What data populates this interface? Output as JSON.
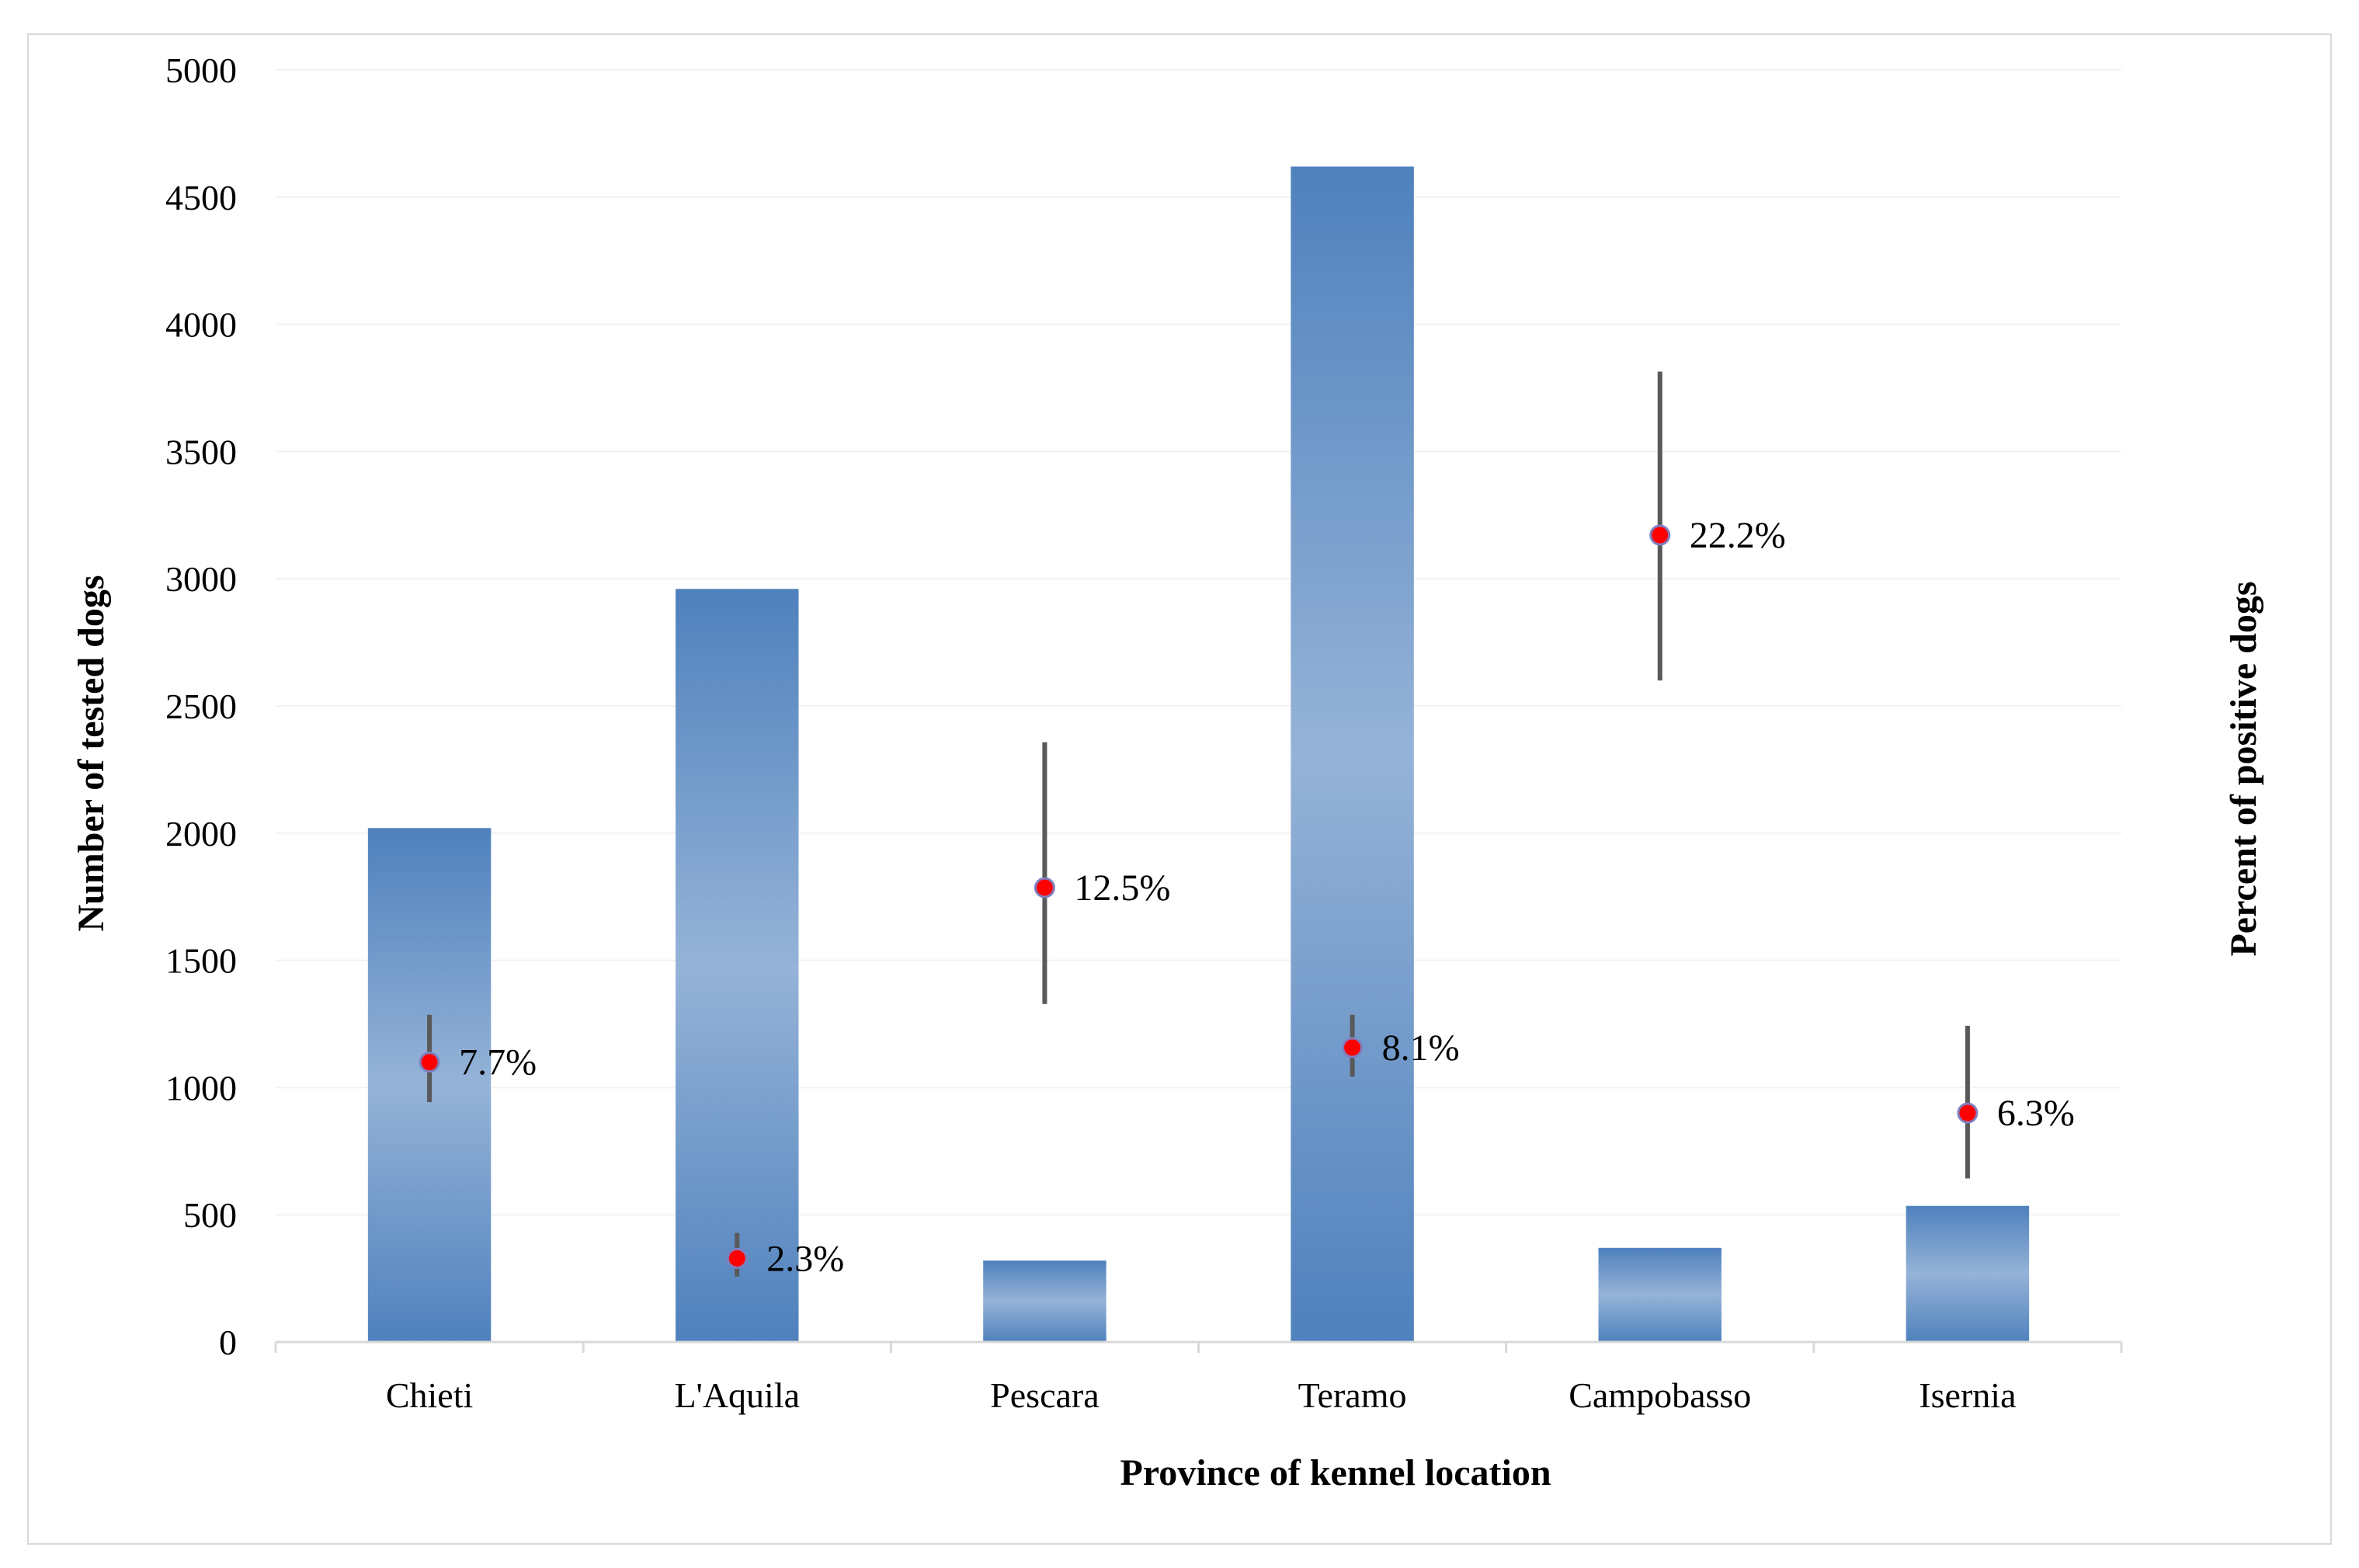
{
  "chart_data": {
    "type": "bar",
    "title": "",
    "xlabel": "Province of kennel location",
    "ylabel": "Number of tested dogs",
    "y2label": "Percent of positive dogs",
    "ylim": [
      0,
      5000
    ],
    "yticks": [
      0,
      500,
      1000,
      1500,
      2000,
      2500,
      3000,
      3500,
      4000,
      4500,
      5000
    ],
    "categories": [
      "Chieti",
      "L'Aquila",
      "Pescara",
      "Teramo",
      "Campobasso",
      "Isernia"
    ],
    "series": [
      {
        "name": "Number of tested dogs",
        "type": "bar",
        "axis": "left",
        "values": [
          2020,
          2960,
          320,
          4620,
          370,
          535
        ]
      },
      {
        "name": "Percent of positive dogs",
        "type": "scatter",
        "axis": "right",
        "values": [
          7.7,
          2.3,
          12.5,
          8.1,
          22.2,
          6.3
        ],
        "labels": [
          "7.7%",
          "2.3%",
          "12.5%",
          "8.1%",
          "22.2%",
          "6.3%"
        ],
        "ci_low": [
          6.6,
          1.8,
          9.3,
          7.3,
          18.2,
          4.5
        ],
        "ci_high": [
          9.0,
          3.0,
          16.5,
          9.0,
          26.7,
          8.7
        ],
        "scale_max_percent": 35
      }
    ],
    "colors": {
      "bar_edge": "#4f81bd",
      "bar_center": "#95b3d7",
      "marker": "#ff0000",
      "marker_edge": "#7f7fbf",
      "error_bar": "#595959",
      "gridline": "#f2f2f2",
      "axis_line": "#d9d9d9"
    }
  }
}
